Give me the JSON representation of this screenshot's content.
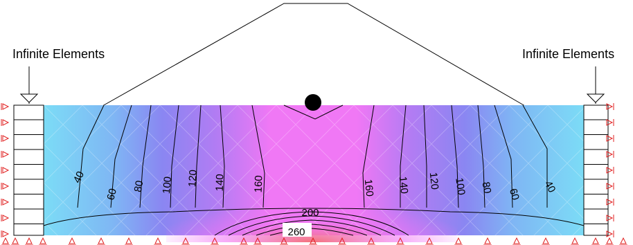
{
  "labels": {
    "left_boundary": "Infinite Elements",
    "right_boundary": "Infinite Elements"
  },
  "contour_labels": [
    "40",
    "60",
    "80",
    "100",
    "120",
    "140",
    "160",
    "160",
    "140",
    "120",
    "100",
    "80",
    "60",
    "40",
    "200",
    "260"
  ],
  "colors": {
    "field_blue": "#79d8f5",
    "field_purple": "#8f7df0",
    "field_magenta": "#f27af5",
    "field_red": "#f0787c",
    "support_red": "#e02020"
  }
}
